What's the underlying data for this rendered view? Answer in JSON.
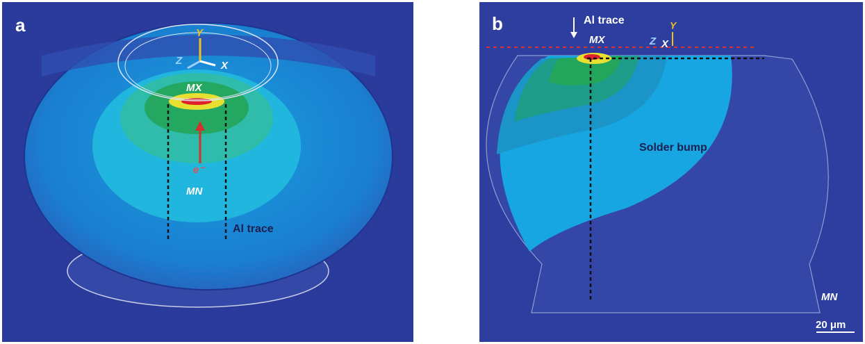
{
  "panels": [
    {
      "label": "a",
      "axes": {
        "y": "Y",
        "z": "Z",
        "x": "X"
      },
      "max_label": "MX",
      "electron": "e⁻",
      "min_label": "MN",
      "trace_label": "Al trace"
    },
    {
      "label": "b",
      "trace_label": "Al trace",
      "max_label": "MX",
      "axes": {
        "z": "Z",
        "x": "X",
        "y": "Y"
      },
      "bump_label": "Solder bump",
      "min_label": "MN",
      "scale_bar": "20 μm"
    }
  ]
}
